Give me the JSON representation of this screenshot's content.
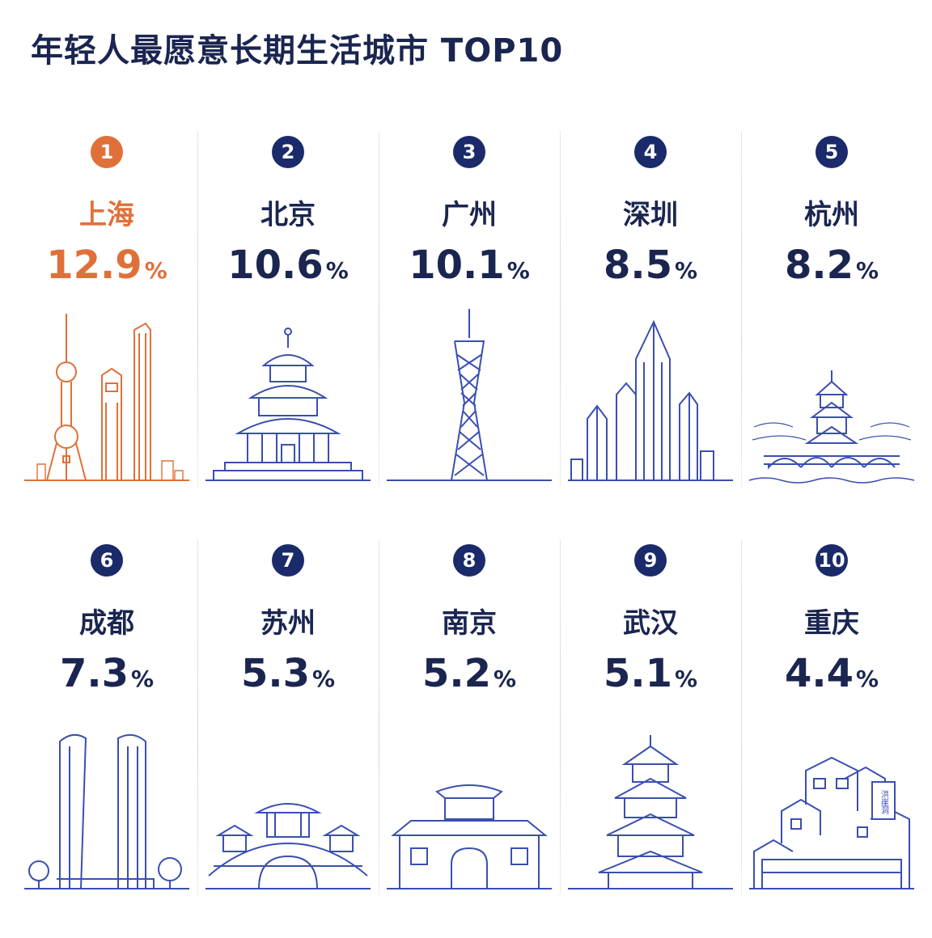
{
  "title": "年轻人最愿意长期生活城市 TOP10",
  "colors": {
    "primary": "#1a2a6a",
    "highlight": "#e0703a",
    "line": "#3a4fb0"
  },
  "chart_data": {
    "type": "bar",
    "title": "年轻人最愿意长期生活城市 TOP10",
    "categories": [
      "上海",
      "北京",
      "广州",
      "深圳",
      "杭州",
      "成都",
      "苏州",
      "南京",
      "武汉",
      "重庆"
    ],
    "ranks": [
      "1",
      "2",
      "3",
      "4",
      "5",
      "6",
      "7",
      "8",
      "9",
      "10"
    ],
    "values": [
      12.9,
      10.6,
      10.1,
      8.5,
      8.2,
      7.3,
      5.3,
      5.2,
      5.1,
      4.4
    ],
    "unit": "%",
    "icons": [
      "oriental-pearl-skyline-icon",
      "temple-of-heaven-icon",
      "canton-tower-icon",
      "skyscraper-cluster-icon",
      "leifeng-pagoda-bridge-icon",
      "twin-towers-icon",
      "stone-arch-bridge-pavilion-icon",
      "city-gate-icon",
      "yellow-crane-tower-icon",
      "stilted-houses-icon"
    ],
    "labels": {
      "chongqing_sign": "洪崖洞"
    }
  }
}
